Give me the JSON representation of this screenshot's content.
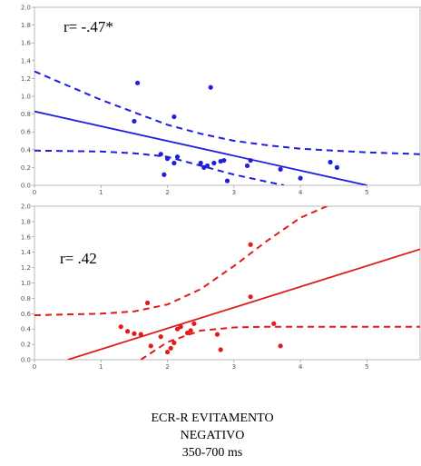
{
  "chart_data": [
    {
      "type": "scatter",
      "annotation": "r= -.47*",
      "color": "#1f1fdc",
      "xlim": [
        0,
        5.8
      ],
      "ylim": [
        0,
        2.0
      ],
      "x_ticks": [
        "0",
        "1",
        "2",
        "3",
        "4",
        "5"
      ],
      "y_ticks": [
        "0.0",
        "0.2",
        "0.4",
        "0.6",
        "0.8",
        "1.0",
        "1.2",
        "1.4",
        "1.6",
        "1.8",
        "2.0"
      ],
      "points": [
        {
          "x": 1.55,
          "y": 1.15
        },
        {
          "x": 1.5,
          "y": 0.72
        },
        {
          "x": 2.1,
          "y": 0.77
        },
        {
          "x": 2.65,
          "y": 1.1
        },
        {
          "x": 1.9,
          "y": 0.35
        },
        {
          "x": 1.95,
          "y": 0.12
        },
        {
          "x": 2.0,
          "y": 0.3
        },
        {
          "x": 2.1,
          "y": 0.25
        },
        {
          "x": 2.15,
          "y": 0.32
        },
        {
          "x": 2.5,
          "y": 0.25
        },
        {
          "x": 2.55,
          "y": 0.2
        },
        {
          "x": 2.6,
          "y": 0.22
        },
        {
          "x": 2.7,
          "y": 0.25
        },
        {
          "x": 2.8,
          "y": 0.27
        },
        {
          "x": 2.85,
          "y": 0.28
        },
        {
          "x": 2.9,
          "y": 0.05
        },
        {
          "x": 3.2,
          "y": 0.22
        },
        {
          "x": 3.25,
          "y": 0.28
        },
        {
          "x": 3.7,
          "y": 0.18
        },
        {
          "x": 4.0,
          "y": 0.08
        },
        {
          "x": 4.45,
          "y": 0.26
        },
        {
          "x": 4.55,
          "y": 0.2
        }
      ],
      "fit_line": [
        [
          0,
          0.83
        ],
        [
          5.0,
          0.0
        ]
      ],
      "ci_upper": [
        [
          0,
          1.28
        ],
        [
          1,
          0.96
        ],
        [
          2,
          0.68
        ],
        [
          2.5,
          0.58
        ],
        [
          3,
          0.5
        ],
        [
          3.5,
          0.45
        ],
        [
          4,
          0.41
        ],
        [
          5,
          0.37
        ],
        [
          5.8,
          0.35
        ]
      ],
      "ci_lower": [
        [
          0,
          0.39
        ],
        [
          1,
          0.38
        ],
        [
          1.5,
          0.36
        ],
        [
          2,
          0.32
        ],
        [
          2.5,
          0.22
        ],
        [
          3,
          0.12
        ],
        [
          3.5,
          0.04
        ],
        [
          3.75,
          0.0
        ]
      ]
    },
    {
      "type": "scatter",
      "annotation": "r= .42",
      "color": "#e11a1a",
      "xlim": [
        0,
        5.8
      ],
      "ylim": [
        0,
        2.0
      ],
      "x_ticks": [
        "0",
        "1",
        "2",
        "3",
        "4",
        "5"
      ],
      "y_ticks": [
        "0.0",
        "0.2",
        "0.4",
        "0.6",
        "0.8",
        "1.0",
        "1.2",
        "1.4",
        "1.6",
        "1.8",
        "2.0"
      ],
      "points": [
        {
          "x": 1.3,
          "y": 0.43
        },
        {
          "x": 1.4,
          "y": 0.37
        },
        {
          "x": 1.5,
          "y": 0.34
        },
        {
          "x": 1.6,
          "y": 0.33
        },
        {
          "x": 1.7,
          "y": 0.74
        },
        {
          "x": 1.75,
          "y": 0.18
        },
        {
          "x": 1.9,
          "y": 0.3
        },
        {
          "x": 2.0,
          "y": 0.1
        },
        {
          "x": 2.05,
          "y": 0.15
        },
        {
          "x": 2.1,
          "y": 0.22
        },
        {
          "x": 2.15,
          "y": 0.4
        },
        {
          "x": 2.2,
          "y": 0.43
        },
        {
          "x": 2.3,
          "y": 0.35
        },
        {
          "x": 2.35,
          "y": 0.38
        },
        {
          "x": 2.4,
          "y": 0.47
        },
        {
          "x": 2.75,
          "y": 0.33
        },
        {
          "x": 2.8,
          "y": 0.13
        },
        {
          "x": 3.25,
          "y": 1.5
        },
        {
          "x": 3.25,
          "y": 0.82
        },
        {
          "x": 3.6,
          "y": 0.47
        },
        {
          "x": 3.7,
          "y": 0.18
        }
      ],
      "fit_line": [
        [
          0.5,
          0.0
        ],
        [
          5.8,
          1.44
        ]
      ],
      "ci_upper": [
        [
          0,
          0.58
        ],
        [
          1,
          0.6
        ],
        [
          1.5,
          0.63
        ],
        [
          2,
          0.72
        ],
        [
          2.5,
          0.92
        ],
        [
          3,
          1.22
        ],
        [
          3.5,
          1.55
        ],
        [
          4,
          1.85
        ],
        [
          4.4,
          2.0
        ]
      ],
      "ci_lower": [
        [
          1.6,
          0.0
        ],
        [
          2.0,
          0.23
        ],
        [
          2.5,
          0.38
        ],
        [
          3,
          0.42
        ],
        [
          3.5,
          0.43
        ],
        [
          4,
          0.43
        ],
        [
          5,
          0.43
        ],
        [
          5.8,
          0.43
        ]
      ]
    }
  ],
  "caption": {
    "line1": "ECR-R EVITAMENTO",
    "line2": "NEGATIVO",
    "line3": "350-700 ms"
  }
}
